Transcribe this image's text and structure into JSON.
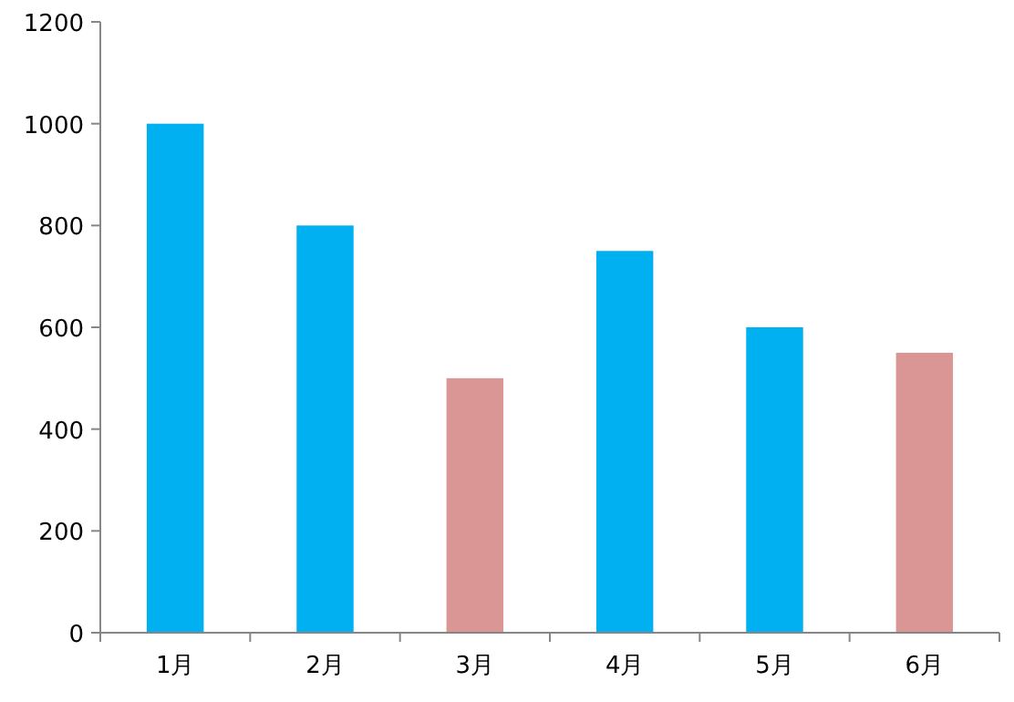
{
  "chart_data": {
    "type": "bar",
    "categories": [
      "1月",
      "2月",
      "3月",
      "4月",
      "5月",
      "6月"
    ],
    "values": [
      1000,
      800,
      500,
      750,
      600,
      550
    ],
    "colors": [
      "#00b0f0",
      "#00b0f0",
      "#d99694",
      "#00b0f0",
      "#00b0f0",
      "#d99694"
    ],
    "ylim": [
      0,
      1200
    ],
    "yticks": [
      0,
      200,
      400,
      600,
      800,
      1000,
      1200
    ]
  }
}
